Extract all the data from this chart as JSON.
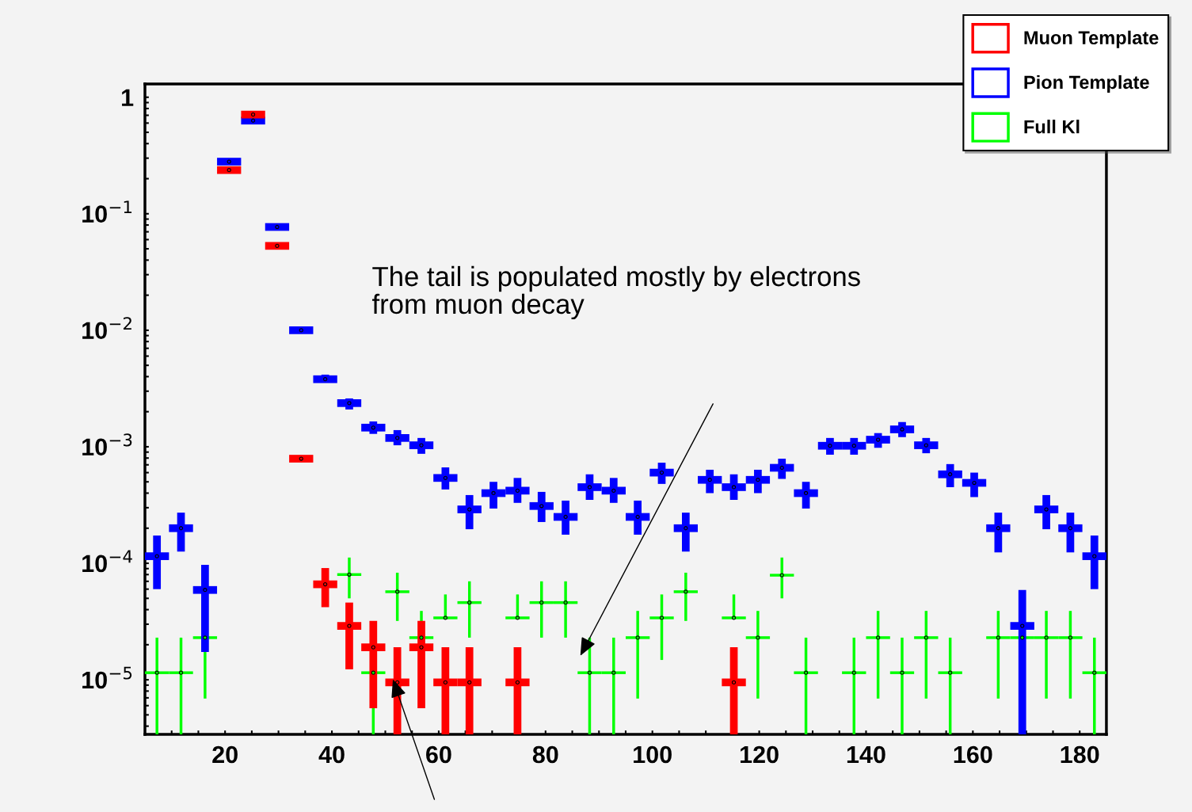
{
  "chart_data": {
    "type": "scatter",
    "x": [
      7.25,
      11.75,
      16.25,
      20.75,
      25.25,
      29.75,
      34.25,
      38.75,
      43.25,
      47.75,
      52.25,
      56.75,
      61.25,
      65.75,
      70.25,
      74.75,
      79.25,
      83.75,
      88.25,
      92.75,
      97.25,
      101.75,
      106.25,
      110.75,
      115.25,
      119.75,
      124.25,
      128.75,
      133.25,
      137.75,
      142.25,
      146.75,
      151.25,
      155.75,
      160.25,
      164.75,
      169.25,
      173.75,
      178.25,
      182.75
    ],
    "series": [
      {
        "name": "Muon Template",
        "color": "#ff0000",
        "values": [
          null,
          null,
          null,
          0.237,
          0.71,
          0.053,
          0.00079,
          6.6e-05,
          2.9e-05,
          1.9e-05,
          9.5e-06,
          1.9e-05,
          9.5e-06,
          9.5e-06,
          null,
          9.5e-06,
          null,
          null,
          null,
          null,
          null,
          null,
          null,
          null,
          9.5e-06,
          null,
          null,
          null,
          null,
          null,
          null,
          null,
          null,
          null,
          null,
          null,
          null,
          null,
          null,
          null
        ],
        "errors": [
          null,
          null,
          null,
          null,
          null,
          null,
          null,
          [
            4.2e-05,
            9.1e-05
          ],
          [
            1.23e-05,
            4.6e-05
          ],
          [
            5.7e-06,
            3.2e-05
          ],
          [
            3.4e-06,
            1.9e-05
          ],
          [
            5.7e-06,
            3.2e-05
          ],
          [
            3.4e-06,
            1.9e-05
          ],
          [
            3.4e-06,
            1.9e-05
          ],
          null,
          [
            3.4e-06,
            1.9e-05
          ],
          null,
          null,
          null,
          null,
          null,
          null,
          null,
          null,
          [
            3.4e-06,
            1.9e-05
          ],
          null,
          null,
          null,
          null,
          null,
          null,
          null,
          null,
          null,
          null,
          null,
          null,
          null,
          null,
          null
        ],
        "xerrors": [
          null,
          null,
          null,
          2.25,
          2.25,
          2.25,
          2.25,
          2.25,
          2.25,
          2.25,
          2.25,
          2.25,
          2.25,
          2.25,
          null,
          2.25,
          null,
          null,
          null,
          null,
          null,
          null,
          null,
          null,
          2.25,
          null,
          null,
          null,
          null,
          null,
          null,
          null,
          null,
          null,
          null,
          null,
          null,
          null,
          null,
          null
        ]
      },
      {
        "name": "Pion Template",
        "color": "#0000ff",
        "values": [
          0.000115,
          0.0002,
          5.9e-05,
          0.28,
          0.63,
          0.077,
          0.01,
          0.0038,
          0.00237,
          0.00146,
          0.00119,
          0.00103,
          0.00054,
          0.00029,
          0.0004,
          0.00042,
          0.00031,
          0.00025,
          0.00045,
          0.00042,
          0.00025,
          0.0006,
          0.0002,
          0.00052,
          0.00045,
          0.00052,
          0.00066,
          0.0004,
          0.00102,
          0.00102,
          0.00115,
          0.00141,
          0.00103,
          0.00058,
          0.00049,
          0.0002,
          2.9e-05,
          0.00029,
          0.0002,
          0.000115
        ],
        "errors": [
          [
            6e-05,
            0.000173
          ],
          [
            0.000126,
            0.000272
          ],
          [
            1.73e-05,
            9.7e-05
          ],
          null,
          null,
          null,
          null,
          [
            0.00356,
            0.00416
          ],
          [
            0.00209,
            0.0026
          ],
          [
            0.00129,
            0.00165
          ],
          [
            0.00103,
            0.00139
          ],
          [
            0.00087,
            0.00119
          ],
          [
            0.00043,
            0.000665
          ],
          [
            0.000196,
            0.000385
          ],
          [
            0.000295,
            0.0005
          ],
          [
            0.00033,
            0.00054
          ],
          [
            0.000226,
            0.00041
          ],
          [
            0.000176,
            0.000345
          ],
          [
            0.00035,
            0.00058
          ],
          [
            0.00033,
            0.00054
          ],
          [
            0.000176,
            0.000345
          ],
          [
            0.00048,
            0.00073
          ],
          [
            0.000126,
            0.000272
          ],
          [
            0.0004,
            0.000635
          ],
          [
            0.00035,
            0.00058
          ],
          [
            0.0004,
            0.000635
          ],
          [
            0.00053,
            0.00079
          ],
          [
            0.000295,
            0.0005
          ],
          [
            0.000855,
            0.00119
          ],
          [
            0.000855,
            0.00119
          ],
          [
            0.00098,
            0.00131
          ],
          [
            0.00121,
            0.00163
          ],
          [
            0.00088,
            0.00119
          ],
          [
            0.00045,
            0.00071
          ],
          [
            0.00037,
            0.0006
          ],
          [
            0.000124,
            0.000272
          ],
          [
            3.4e-06,
            5.9e-05
          ],
          [
            0.000196,
            0.000385
          ],
          [
            0.000124,
            0.000272
          ],
          [
            6e-05,
            0.000173
          ]
        ],
        "xerrors": [
          2.25,
          2.25,
          2.25,
          2.25,
          2.25,
          2.25,
          2.25,
          2.25,
          2.25,
          2.25,
          2.25,
          2.25,
          2.25,
          2.25,
          2.25,
          2.25,
          2.25,
          2.25,
          2.25,
          2.25,
          2.25,
          2.25,
          2.25,
          2.25,
          2.25,
          2.25,
          2.25,
          2.25,
          2.25,
          2.25,
          2.25,
          2.25,
          2.25,
          2.25,
          2.25,
          2.25,
          2.25,
          2.25,
          2.25,
          2.25
        ]
      },
      {
        "name": "Full Kl",
        "color": "#00ff00",
        "values": [
          1.15e-05,
          1.15e-05,
          2.3e-05,
          null,
          null,
          null,
          null,
          null,
          8e-05,
          1.15e-05,
          5.7e-05,
          2.3e-05,
          3.4e-05,
          4.6e-05,
          null,
          3.4e-05,
          4.6e-05,
          4.6e-05,
          1.15e-05,
          1.15e-05,
          2.3e-05,
          3.4e-05,
          5.7e-05,
          null,
          3.4e-05,
          2.3e-05,
          7.9e-05,
          1.15e-05,
          null,
          1.15e-05,
          2.3e-05,
          1.15e-05,
          2.3e-05,
          1.15e-05,
          null,
          2.3e-05,
          2.3e-05,
          2.3e-05,
          2.3e-05,
          1.15e-05
        ],
        "errors": [
          [
            3.4e-06,
            2.3e-05
          ],
          [
            3.4e-06,
            2.3e-05
          ],
          [
            6.9e-06,
            2.3e-05
          ],
          null,
          null,
          null,
          null,
          null,
          [
            5e-05,
            0.000112
          ],
          [
            3.4e-06,
            1.15e-05
          ],
          [
            3.2e-05,
            8.3e-05
          ],
          [
            2.3e-05,
            3.9e-05
          ],
          [
            3.4e-05,
            5.4e-05
          ],
          [
            2.3e-05,
            7e-05
          ],
          null,
          [
            3.4e-05,
            5.4e-05
          ],
          [
            2.3e-05,
            7e-05
          ],
          [
            2.3e-05,
            7e-05
          ],
          [
            3.4e-06,
            2.3e-05
          ],
          [
            3.4e-06,
            2.3e-05
          ],
          [
            6.9e-06,
            3.9e-05
          ],
          [
            1.48e-05,
            5.4e-05
          ],
          [
            3.2e-05,
            8.3e-05
          ],
          null,
          [
            3.4e-05,
            5.4e-05
          ],
          [
            6.9e-06,
            3.9e-05
          ],
          [
            5e-05,
            0.000112
          ],
          [
            3.4e-06,
            2.3e-05
          ],
          null,
          [
            3.4e-06,
            2.3e-05
          ],
          [
            6.9e-06,
            3.9e-05
          ],
          [
            3.4e-06,
            2.3e-05
          ],
          [
            6.9e-06,
            3.9e-05
          ],
          [
            3.4e-06,
            2.3e-05
          ],
          null,
          [
            6.9e-06,
            3.9e-05
          ],
          null,
          [
            6.9e-06,
            3.9e-05
          ],
          [
            6.9e-06,
            3.9e-05
          ],
          [
            3.4e-06,
            2.3e-05
          ]
        ],
        "xerrors": [
          2.25,
          2.25,
          2.25,
          null,
          null,
          null,
          null,
          null,
          2.25,
          2.25,
          2.25,
          2.25,
          2.25,
          2.25,
          null,
          2.25,
          2.25,
          2.25,
          2.25,
          2.25,
          2.25,
          2.25,
          2.25,
          null,
          2.25,
          2.25,
          2.25,
          2.25,
          null,
          2.25,
          2.25,
          2.25,
          2.25,
          2.25,
          null,
          2.25,
          2.25,
          2.25,
          2.25,
          2.25
        ]
      }
    ],
    "log": "y",
    "xlim": [
      5,
      185
    ],
    "ylim": [
      3.4e-06,
      1.3
    ],
    "xticks": [
      20,
      40,
      60,
      80,
      100,
      120,
      140,
      160,
      180,
      {
        "value": 10,
        "label": null
      },
      {
        "value": 15,
        "label": null
      },
      {
        "value": 25,
        "label": null
      },
      {
        "value": 30,
        "label": null
      },
      {
        "value": 35,
        "label": null
      },
      {
        "value": 45,
        "label": null
      },
      {
        "value": 50,
        "label": null
      },
      {
        "value": 55,
        "label": null
      },
      {
        "value": 65,
        "label": null
      },
      {
        "value": 70,
        "label": null
      },
      {
        "value": 75,
        "label": null
      },
      {
        "value": 85,
        "label": null
      },
      {
        "value": 90,
        "label": null
      },
      {
        "value": 95,
        "label": null
      },
      {
        "value": 105,
        "label": null
      },
      {
        "value": 110,
        "label": null
      },
      {
        "value": 115,
        "label": null
      },
      {
        "value": 125,
        "label": null
      },
      {
        "value": 130,
        "label": null
      },
      {
        "value": 135,
        "label": null
      },
      {
        "value": 145,
        "label": null
      },
      {
        "value": 150,
        "label": null
      },
      {
        "value": 155,
        "label": null
      },
      {
        "value": 165,
        "label": null
      },
      {
        "value": 170,
        "label": null
      },
      {
        "value": 175,
        "label": null
      }
    ],
    "yticks": [
      {
        "value": 1e-05,
        "label": "10$^{−5}$"
      },
      {
        "value": 0.0001,
        "label": "10$^{−4}$"
      },
      {
        "value": 0.001,
        "label": "10$^{−3}$"
      },
      {
        "value": 0.01,
        "label": "10$^{−2}$"
      },
      {
        "value": 0.1,
        "label": "10$^{−1}$"
      },
      1,
      {
        "value": 4e-06,
        "label": null
      },
      {
        "value": 5e-06,
        "label": null
      },
      {
        "value": 6e-06,
        "label": null
      },
      {
        "value": 7e-06,
        "label": null
      },
      {
        "value": 8e-06,
        "label": null
      },
      {
        "value": 9e-06,
        "label": null
      },
      {
        "value": 2e-05,
        "label": null
      },
      {
        "value": 3e-05,
        "label": null
      },
      {
        "value": 4e-05,
        "label": null
      },
      {
        "value": 5e-05,
        "label": null
      },
      {
        "value": 6e-05,
        "label": null
      },
      {
        "value": 7e-05,
        "label": null
      },
      {
        "value": 8e-05,
        "label": null
      },
      {
        "value": 9e-05,
        "label": null
      },
      {
        "value": 0.0002,
        "label": null
      },
      {
        "value": 0.0003,
        "label": null
      },
      {
        "value": 0.0004,
        "label": null
      },
      {
        "value": 0.0005,
        "label": null
      },
      {
        "value": 0.0006,
        "label": null
      },
      {
        "value": 0.0007,
        "label": null
      },
      {
        "value": 0.0008,
        "label": null
      },
      {
        "value": 0.0009,
        "label": null
      },
      {
        "value": 0.002,
        "label": null
      },
      {
        "value": 0.003,
        "label": null
      },
      {
        "value": 0.004,
        "label": null
      },
      {
        "value": 0.005,
        "label": null
      },
      {
        "value": 0.006,
        "label": null
      },
      {
        "value": 0.007,
        "label": null
      },
      {
        "value": 0.008,
        "label": null
      },
      {
        "value": 0.009,
        "label": null
      },
      {
        "value": 0.02,
        "label": null
      },
      {
        "value": 0.03,
        "label": null
      },
      {
        "value": 0.04,
        "label": null
      },
      {
        "value": 0.05,
        "label": null
      },
      {
        "value": 0.06,
        "label": null
      },
      {
        "value": 0.07,
        "label": null
      },
      {
        "value": 0.08,
        "label": null
      },
      {
        "value": 0.09,
        "label": null
      },
      {
        "value": 0.2,
        "label": null
      },
      {
        "value": 0.3,
        "label": null
      },
      {
        "value": 0.4,
        "label": null
      },
      {
        "value": 0.5,
        "label": null
      },
      {
        "value": 0.6,
        "label": null
      },
      {
        "value": 0.7,
        "label": null
      },
      {
        "value": 0.8,
        "label": null
      },
      {
        "value": 0.9,
        "label": null
      }
    ],
    "grid": false,
    "legend": "top right",
    "marker": "circle",
    "annotations": [
      "The tail is populated mostly by electrons\nfrom muon decay"
    ]
  }
}
